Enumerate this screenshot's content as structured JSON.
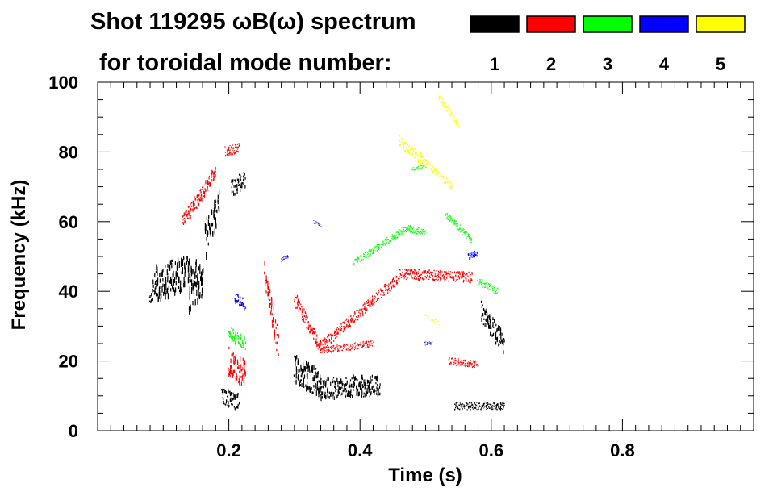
{
  "chart_data": {
    "type": "scatter",
    "title": "Shot 119295 ωB(ω) spectrum",
    "subtitle": "for toroidal mode number:",
    "xlabel": "Time (s)",
    "ylabel": "Frequency (kHz)",
    "xlim": [
      0.0,
      1.0
    ],
    "ylim": [
      0,
      100
    ],
    "x_ticks": [
      0.2,
      0.4,
      0.6,
      0.8
    ],
    "x_tick_labels": [
      "0.2",
      "0.4",
      "0.6",
      "0.8"
    ],
    "y_ticks": [
      0,
      20,
      40,
      60,
      80,
      100
    ],
    "y_tick_labels": [
      "0",
      "20",
      "40",
      "60",
      "80",
      "100"
    ],
    "legend_position": "top-right",
    "series": [
      {
        "name": "1",
        "color": "#000000",
        "blobs": [
          {
            "t": [
              0.08,
              0.09
            ],
            "f": [
              38,
              44
            ],
            "spread": 5
          },
          {
            "t": [
              0.09,
              0.14
            ],
            "f": [
              42,
              46
            ],
            "spread": 10
          },
          {
            "t": [
              0.14,
              0.16
            ],
            "f": [
              40,
              45
            ],
            "spread": 12
          },
          {
            "t": [
              0.165,
              0.185
            ],
            "f": [
              55,
              65
            ],
            "spread": 10
          },
          {
            "t": [
              0.205,
              0.225
            ],
            "f": [
              70,
              72
            ],
            "spread": 5
          },
          {
            "t": [
              0.19,
              0.215
            ],
            "f": [
              10,
              8
            ],
            "spread": 5
          },
          {
            "t": [
              0.3,
              0.34
            ],
            "f": [
              18,
              13
            ],
            "spread": 8
          },
          {
            "t": [
              0.34,
              0.43
            ],
            "f": [
              12,
              13
            ],
            "spread": 6
          },
          {
            "t": [
              0.585,
              0.62
            ],
            "f": [
              34,
              25
            ],
            "spread": 6
          },
          {
            "t": [
              0.545,
              0.62
            ],
            "f": [
              7,
              7
            ],
            "spread": 2
          }
        ]
      },
      {
        "name": "2",
        "color": "#ff0000",
        "blobs": [
          {
            "t": [
              0.13,
              0.18
            ],
            "f": [
              60,
              74
            ],
            "spread": 4
          },
          {
            "t": [
              0.195,
              0.215
            ],
            "f": [
              80,
              81
            ],
            "spread": 3
          },
          {
            "t": [
              0.2,
              0.225
            ],
            "f": [
              20,
              16
            ],
            "spread": 8
          },
          {
            "t": [
              0.255,
              0.275
            ],
            "f": [
              45,
              25
            ],
            "spread": 7
          },
          {
            "t": [
              0.3,
              0.34
            ],
            "f": [
              38,
              24
            ],
            "spread": 4
          },
          {
            "t": [
              0.34,
              0.46
            ],
            "f": [
              24,
              44
            ],
            "spread": 3
          },
          {
            "t": [
              0.46,
              0.57
            ],
            "f": [
              45,
              44
            ],
            "spread": 3
          },
          {
            "t": [
              0.34,
              0.42
            ],
            "f": [
              23,
              25
            ],
            "spread": 2
          },
          {
            "t": [
              0.535,
              0.58
            ],
            "f": [
              20,
              19
            ],
            "spread": 2
          }
        ]
      },
      {
        "name": "3",
        "color": "#00ff00",
        "blobs": [
          {
            "t": [
              0.2,
              0.225
            ],
            "f": [
              28,
              25
            ],
            "spread": 4
          },
          {
            "t": [
              0.39,
              0.47
            ],
            "f": [
              48,
              58
            ],
            "spread": 2
          },
          {
            "t": [
              0.47,
              0.5
            ],
            "f": [
              58,
              57
            ],
            "spread": 2
          },
          {
            "t": [
              0.53,
              0.57
            ],
            "f": [
              62,
              55
            ],
            "spread": 2
          },
          {
            "t": [
              0.58,
              0.61
            ],
            "f": [
              43,
              40
            ],
            "spread": 2
          },
          {
            "t": [
              0.48,
              0.5
            ],
            "f": [
              75,
              76
            ],
            "spread": 1
          }
        ]
      },
      {
        "name": "4",
        "color": "#0000ff",
        "blobs": [
          {
            "t": [
              0.21,
              0.225
            ],
            "f": [
              38,
              36
            ],
            "spread": 3
          },
          {
            "t": [
              0.28,
              0.29
            ],
            "f": [
              49,
              50
            ],
            "spread": 1
          },
          {
            "t": [
              0.565,
              0.58
            ],
            "f": [
              50,
              51
            ],
            "spread": 2
          },
          {
            "t": [
              0.5,
              0.51
            ],
            "f": [
              25,
              25
            ],
            "spread": 1
          },
          {
            "t": [
              0.33,
              0.34
            ],
            "f": [
              60,
              59
            ],
            "spread": 1
          }
        ]
      },
      {
        "name": "5",
        "color": "#ffff00",
        "blobs": [
          {
            "t": [
              0.46,
              0.5
            ],
            "f": [
              83,
              77
            ],
            "spread": 3
          },
          {
            "t": [
              0.5,
              0.54
            ],
            "f": [
              77,
              70
            ],
            "spread": 2
          },
          {
            "t": [
              0.52,
              0.55
            ],
            "f": [
              96,
              88
            ],
            "spread": 2
          },
          {
            "t": [
              0.5,
              0.52
            ],
            "f": [
              33,
              31
            ],
            "spread": 1
          }
        ]
      }
    ]
  }
}
